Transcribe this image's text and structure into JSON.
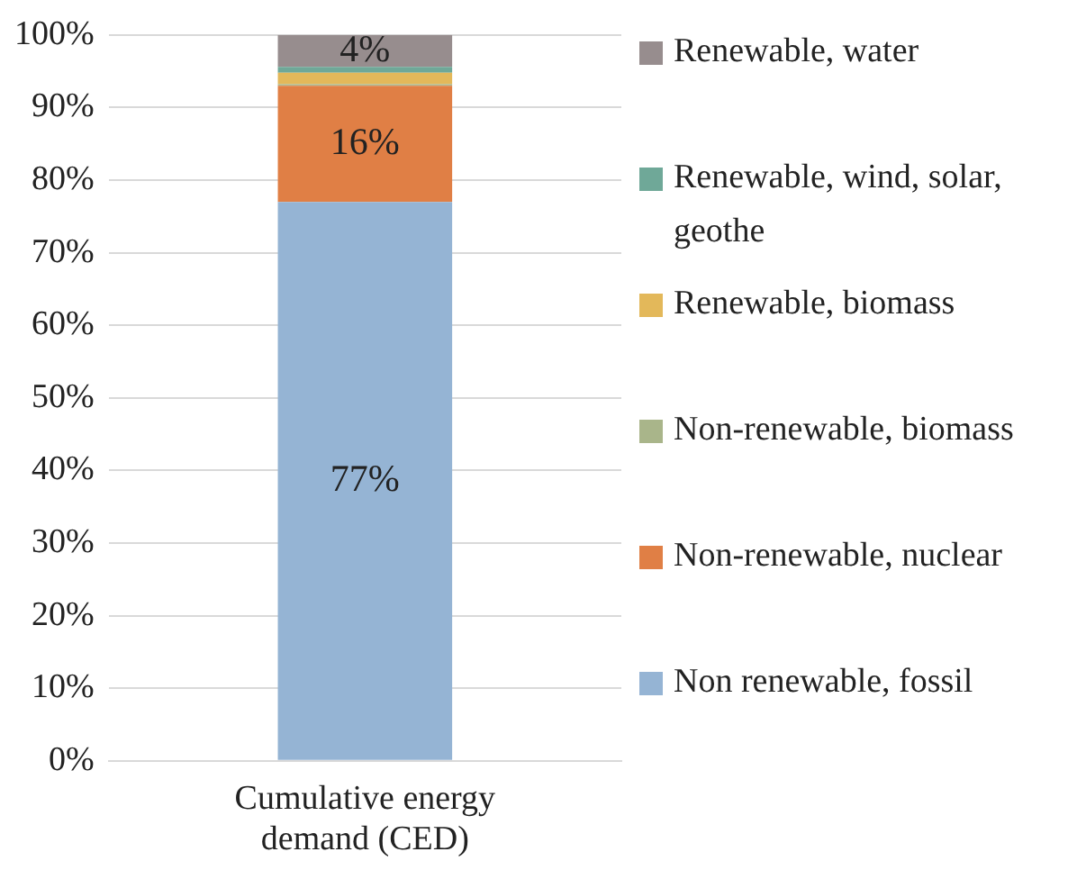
{
  "chart_data": {
    "type": "bar",
    "stacked": true,
    "categories": [
      "Cumulative energy demand (CED)"
    ],
    "series": [
      {
        "name": "Non renewable, fossil",
        "color": "#95b4d4",
        "values": [
          77
        ],
        "value_labels": [
          "77%"
        ]
      },
      {
        "name": "Non-renewable, nuclear",
        "color": "#e07f45",
        "values": [
          16
        ],
        "value_labels": [
          "16%"
        ]
      },
      {
        "name": "Non-renewable, biomass",
        "color": "#a9b58a",
        "values": [
          0.2
        ],
        "value_labels": [
          null
        ]
      },
      {
        "name": "Renewable, biomass",
        "color": "#e3b85a",
        "values": [
          1.6
        ],
        "value_labels": [
          null
        ]
      },
      {
        "name": "Renewable, wind, solar, geothe",
        "color": "#6fa898",
        "values": [
          0.8
        ],
        "value_labels": [
          null
        ]
      },
      {
        "name": "Renewable, water",
        "color": "#978d8e",
        "values": [
          4.4
        ],
        "value_labels": [
          "4%"
        ]
      }
    ],
    "ylim": [
      0,
      100
    ],
    "yticks": [
      {
        "value": 0,
        "label": "0%"
      },
      {
        "value": 10,
        "label": "10%"
      },
      {
        "value": 20,
        "label": "20%"
      },
      {
        "value": 30,
        "label": "30%"
      },
      {
        "value": 40,
        "label": "40%"
      },
      {
        "value": 50,
        "label": "50%"
      },
      {
        "value": 60,
        "label": "60%"
      },
      {
        "value": 70,
        "label": "70%"
      },
      {
        "value": 80,
        "label": "80%"
      },
      {
        "value": 90,
        "label": "90%"
      },
      {
        "value": 100,
        "label": "100%"
      }
    ],
    "grid": "y",
    "legend": "right"
  }
}
